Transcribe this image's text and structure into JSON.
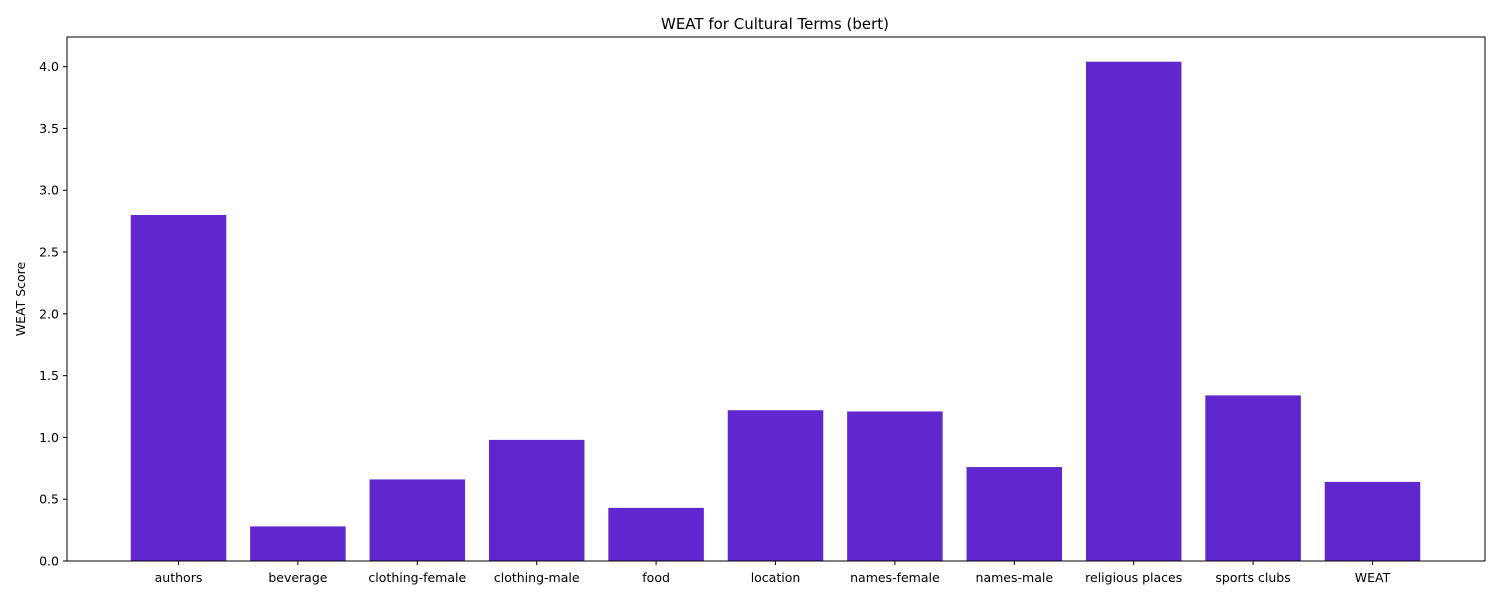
{
  "chart_data": {
    "type": "bar",
    "title": "WEAT for Cultural Terms (bert)",
    "xlabel": "",
    "ylabel": "WEAT Score",
    "categories": [
      "authors",
      "beverage",
      "clothing-female",
      "clothing-male",
      "food",
      "location",
      "names-female",
      "names-male",
      "religious places",
      "sports clubs",
      "WEAT"
    ],
    "values": [
      2.8,
      0.28,
      0.66,
      0.98,
      0.43,
      1.22,
      1.21,
      0.76,
      4.04,
      1.34,
      0.64
    ],
    "ylim": [
      0,
      4.24
    ],
    "yticks": [
      "0.0",
      "0.5",
      "1.0",
      "1.5",
      "2.0",
      "2.5",
      "3.0",
      "3.5",
      "4.0"
    ],
    "bar_color": "#5f27cd",
    "grid": false,
    "legend": "none"
  }
}
